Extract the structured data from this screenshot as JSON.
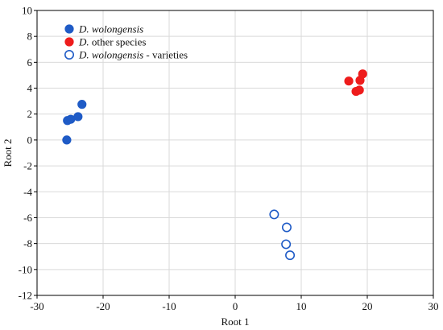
{
  "chart_data": {
    "type": "scatter",
    "title": "",
    "xlabel": "Root 1",
    "ylabel": "Root 2",
    "xlim": [
      -30,
      30
    ],
    "ylim": [
      -12,
      10
    ],
    "xticks": [
      -30,
      -20,
      -10,
      0,
      10,
      20,
      30
    ],
    "yticks": [
      -12,
      -10,
      -8,
      -6,
      -4,
      -2,
      0,
      2,
      4,
      6,
      8,
      10
    ],
    "grid": true,
    "legend_position": "top-left",
    "series": [
      {
        "name": "D. wolongensis",
        "name_italic": "D. wolongensis",
        "name_rest": "",
        "color": "#1f5bc6",
        "marker": "filled-circle",
        "points": [
          {
            "x": -25.5,
            "y": 0.0
          },
          {
            "x": -25.4,
            "y": 1.5
          },
          {
            "x": -24.9,
            "y": 1.6
          },
          {
            "x": -23.8,
            "y": 1.8
          },
          {
            "x": -23.2,
            "y": 2.75
          }
        ]
      },
      {
        "name": "D. other species",
        "name_italic": "D.",
        "name_rest": " other species",
        "color": "#ee1c1c",
        "marker": "filled-circle",
        "points": [
          {
            "x": 17.2,
            "y": 4.55
          },
          {
            "x": 18.3,
            "y": 3.75
          },
          {
            "x": 18.8,
            "y": 3.85
          },
          {
            "x": 18.9,
            "y": 4.6
          },
          {
            "x": 19.3,
            "y": 5.1
          }
        ]
      },
      {
        "name": "D. wolongensis - varieties",
        "name_italic": "D. wolongensis",
        "name_rest": " - varieties",
        "color": "#1f5bc6",
        "marker": "open-circle",
        "points": [
          {
            "x": 5.9,
            "y": -5.75
          },
          {
            "x": 7.8,
            "y": -6.75
          },
          {
            "x": 7.7,
            "y": -8.05
          },
          {
            "x": 8.3,
            "y": -8.9
          }
        ]
      }
    ]
  }
}
